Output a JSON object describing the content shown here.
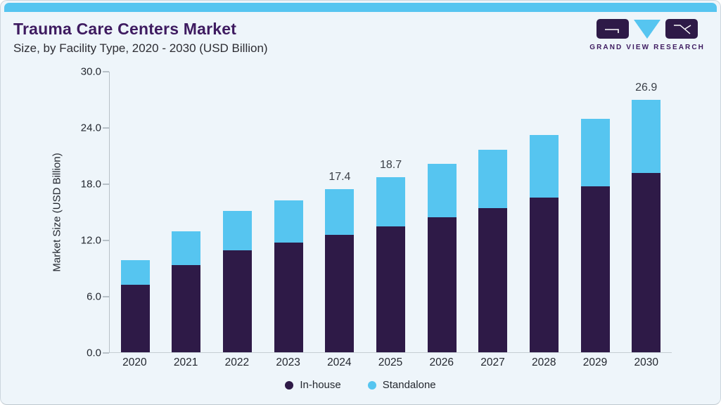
{
  "header": {
    "title": "Trauma Care Centers Market",
    "subtitle": "Size, by Facility Type, 2020 - 2030 (USD Billion)"
  },
  "logo": {
    "wordmark": "GRAND VIEW RESEARCH"
  },
  "colors": {
    "accent_blue": "#56c5f0",
    "accent_purple": "#2e1a47",
    "title_purple": "#3e1b60",
    "background": "#eef5fa"
  },
  "chart_data": {
    "type": "bar",
    "stacked": true,
    "title": "Trauma Care Centers Market Size, by Facility Type, 2020 - 2030 (USD Billion)",
    "xlabel": "",
    "ylabel": "Market Size (USD Billion)",
    "ylim": [
      0,
      30
    ],
    "y_ticks": [
      "0.0",
      "6.0",
      "12.0",
      "18.0",
      "24.0",
      "30.0"
    ],
    "grid": false,
    "legend_position": "bottom",
    "categories": [
      "2020",
      "2021",
      "2022",
      "2023",
      "2024",
      "2025",
      "2026",
      "2027",
      "2028",
      "2029",
      "2030"
    ],
    "series": [
      {
        "name": "In-house",
        "color": "#2e1a47",
        "values": [
          7.2,
          9.3,
          10.9,
          11.7,
          12.5,
          13.4,
          14.4,
          15.4,
          16.5,
          17.7,
          19.1
        ]
      },
      {
        "name": "Standalone",
        "color": "#56c5f0",
        "values": [
          2.6,
          3.6,
          4.2,
          4.5,
          4.9,
          5.3,
          5.7,
          6.2,
          6.7,
          7.2,
          7.8
        ]
      }
    ],
    "total_labels": {
      "2024": "17.4",
      "2025": "18.7",
      "2030": "26.9"
    }
  }
}
